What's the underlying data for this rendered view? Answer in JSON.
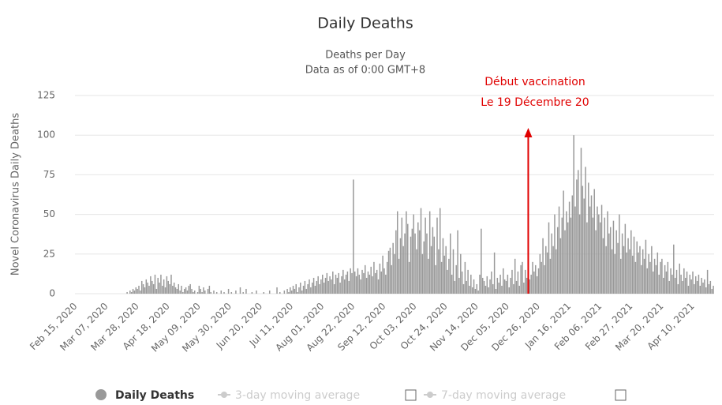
{
  "chart_data": {
    "type": "bar",
    "title": "Daily Deaths",
    "subtitle": [
      "Deaths per Day",
      "Data as of 0:00 GMT+8"
    ],
    "y_label": "Novel Coronavirus Daily Deaths",
    "annotation": [
      "Début vaccination",
      "Le 19 Décembre 20"
    ],
    "inactive_legend": [
      "3-day moving average",
      "7-day moving average"
    ],
    "ylim": [
      0,
      125
    ],
    "yticks": [
      0,
      25,
      50,
      75,
      100,
      125
    ],
    "grid": true,
    "categories": [
      "Feb 15, 2020",
      null,
      null,
      null,
      null,
      null,
      null,
      null,
      null,
      null,
      null,
      null,
      null,
      null,
      null,
      null,
      null,
      null,
      null,
      null,
      null,
      "Mar 07, 2020",
      null,
      null,
      null,
      null,
      null,
      null,
      null,
      null,
      null,
      null,
      null,
      null,
      null,
      null,
      null,
      null,
      null,
      null,
      null,
      null,
      "Mar 28, 2020",
      null,
      null,
      null,
      null,
      null,
      null,
      null,
      null,
      null,
      null,
      null,
      null,
      null,
      null,
      null,
      null,
      null,
      null,
      null,
      null,
      "Apr 18, 2020",
      null,
      null,
      null,
      null,
      null,
      null,
      null,
      null,
      null,
      null,
      null,
      null,
      null,
      null,
      null,
      null,
      null,
      null,
      null,
      null,
      "May 09, 2020",
      null,
      null,
      null,
      null,
      null,
      null,
      null,
      null,
      null,
      null,
      null,
      null,
      null,
      null,
      null,
      null,
      null,
      null,
      null,
      null,
      "May 30, 2020",
      null,
      null,
      null,
      null,
      null,
      null,
      null,
      null,
      null,
      null,
      null,
      null,
      null,
      null,
      null,
      null,
      null,
      null,
      null,
      null,
      "Jun 20, 2020",
      null,
      null,
      null,
      null,
      null,
      null,
      null,
      null,
      null,
      null,
      null,
      null,
      null,
      null,
      null,
      null,
      null,
      null,
      null,
      null,
      "Jul 11, 2020",
      null,
      null,
      null,
      null,
      null,
      null,
      null,
      null,
      null,
      null,
      null,
      null,
      null,
      null,
      null,
      null,
      null,
      null,
      null,
      null,
      "Aug 01, 2020",
      null,
      null,
      null,
      null,
      null,
      null,
      null,
      null,
      null,
      null,
      null,
      null,
      null,
      null,
      null,
      null,
      null,
      null,
      null,
      null,
      "Aug 22, 2020",
      null,
      null,
      null,
      null,
      null,
      null,
      null,
      null,
      null,
      null,
      null,
      null,
      null,
      null,
      null,
      null,
      null,
      null,
      null,
      null,
      "Sep 12, 2020",
      null,
      null,
      null,
      null,
      null,
      null,
      null,
      null,
      null,
      null,
      null,
      null,
      null,
      null,
      null,
      null,
      null,
      null,
      null,
      null,
      "Oct 03, 2020",
      null,
      null,
      null,
      null,
      null,
      null,
      null,
      null,
      null,
      null,
      null,
      null,
      null,
      null,
      null,
      null,
      null,
      null,
      null,
      null,
      "Oct 24, 2020",
      null,
      null,
      null,
      null,
      null,
      null,
      null,
      null,
      null,
      null,
      null,
      null,
      null,
      null,
      null,
      null,
      null,
      null,
      null,
      null,
      "Nov 14, 2020",
      null,
      null,
      null,
      null,
      null,
      null,
      null,
      null,
      null,
      null,
      null,
      null,
      null,
      null,
      null,
      null,
      null,
      null,
      null,
      null,
      "Dec 05, 2020",
      null,
      null,
      null,
      null,
      null,
      null,
      null,
      null,
      null,
      null,
      null,
      null,
      null,
      null,
      null,
      null,
      null,
      null,
      null,
      null,
      "Dec 26, 2020",
      null,
      null,
      null,
      null,
      null,
      null,
      null,
      null,
      null,
      null,
      null,
      null,
      null,
      null,
      null,
      null,
      null,
      null,
      null,
      null,
      "Jan 16, 2021",
      null,
      null,
      null,
      null,
      null,
      null,
      null,
      null,
      null,
      null,
      null,
      null,
      null,
      null,
      null,
      null,
      null,
      null,
      null,
      null,
      "Feb 06, 2021",
      null,
      null,
      null,
      null,
      null,
      null,
      null,
      null,
      null,
      null,
      null,
      null,
      null,
      null,
      null,
      null,
      null,
      null,
      null,
      null,
      "Feb 27, 2021",
      null,
      null,
      null,
      null,
      null,
      null,
      null,
      null,
      null,
      null,
      null,
      null,
      null,
      null,
      null,
      null,
      null,
      null,
      null,
      null,
      "Mar 20, 2021",
      null,
      null,
      null,
      null,
      null,
      null,
      null,
      null,
      null,
      null,
      null,
      null,
      null,
      null,
      null,
      null,
      null,
      null,
      null,
      null,
      "Apr 10, 2021",
      null,
      null,
      null,
      null,
      null,
      null,
      null,
      null,
      null,
      null,
      null,
      null,
      null,
      null
    ],
    "series": [
      {
        "name": "Daily Deaths",
        "color": "#999999",
        "values": [
          0,
          0,
          0,
          0,
          0,
          0,
          0,
          0,
          0,
          0,
          0,
          0,
          0,
          0,
          0,
          0,
          0,
          0,
          0,
          0,
          0,
          0,
          0,
          0,
          0,
          0,
          0,
          0,
          0,
          0,
          0,
          0,
          0,
          0,
          0,
          1,
          0,
          2,
          1,
          3,
          2,
          4,
          3,
          5,
          2,
          8,
          6,
          4,
          9,
          7,
          5,
          11,
          8,
          6,
          12,
          3,
          10,
          7,
          12,
          5,
          9,
          4,
          11,
          8,
          6,
          12,
          5,
          7,
          4,
          3,
          6,
          2,
          5,
          1,
          3,
          4,
          2,
          5,
          6,
          3,
          1,
          2,
          0,
          1,
          5,
          3,
          1,
          4,
          2,
          0,
          3,
          5,
          1,
          0,
          2,
          0,
          1,
          0,
          0,
          2,
          0,
          1,
          0,
          0,
          3,
          0,
          1,
          0,
          0,
          2,
          0,
          0,
          4,
          0,
          1,
          0,
          3,
          0,
          0,
          0,
          1,
          0,
          0,
          2,
          0,
          0,
          0,
          0,
          1,
          0,
          0,
          0,
          2,
          0,
          0,
          0,
          0,
          4,
          0,
          1,
          0,
          0,
          2,
          0,
          3,
          1,
          4,
          2,
          5,
          3,
          6,
          1,
          4,
          7,
          2,
          5,
          8,
          3,
          6,
          9,
          4,
          7,
          10,
          5,
          8,
          11,
          6,
          9,
          12,
          7,
          10,
          13,
          8,
          11,
          9,
          14,
          6,
          12,
          10,
          13,
          7,
          11,
          15,
          9,
          12,
          14,
          8,
          16,
          13,
          72,
          14,
          11,
          16,
          12,
          9,
          15,
          13,
          18,
          10,
          14,
          12,
          17,
          11,
          20,
          13,
          15,
          9,
          19,
          14,
          24,
          16,
          12,
          20,
          27,
          29,
          18,
          32,
          25,
          40,
          52,
          22,
          35,
          48,
          30,
          38,
          52,
          44,
          20,
          36,
          41,
          50,
          38,
          28,
          45,
          40,
          54,
          25,
          33,
          48,
          38,
          22,
          52,
          30,
          42,
          36,
          18,
          48,
          28,
          54,
          20,
          35,
          24,
          30,
          15,
          22,
          38,
          12,
          28,
          8,
          18,
          40,
          10,
          25,
          14,
          6,
          20,
          8,
          15,
          5,
          12,
          4,
          9,
          3,
          6,
          2,
          12,
          41,
          10,
          8,
          5,
          11,
          4,
          9,
          14,
          6,
          26,
          3,
          10,
          7,
          12,
          5,
          16,
          9,
          8,
          12,
          4,
          10,
          15,
          6,
          22,
          8,
          14,
          5,
          18,
          20,
          7,
          15,
          10,
          16,
          9,
          12,
          20,
          14,
          18,
          11,
          16,
          25,
          20,
          35,
          18,
          30,
          26,
          45,
          22,
          38,
          30,
          50,
          28,
          42,
          55,
          35,
          48,
          65,
          40,
          52,
          45,
          58,
          48,
          62,
          100,
          55,
          72,
          78,
          50,
          92,
          68,
          60,
          80,
          45,
          70,
          55,
          62,
          48,
          66,
          40,
          55,
          50,
          45,
          56,
          35,
          48,
          30,
          52,
          38,
          42,
          28,
          46,
          25,
          40,
          32,
          50,
          22,
          38,
          30,
          44,
          26,
          35,
          28,
          40,
          24,
          36,
          20,
          33,
          26,
          30,
          18,
          28,
          22,
          34,
          16,
          25,
          20,
          30,
          14,
          22,
          18,
          26,
          12,
          20,
          22,
          10,
          18,
          14,
          20,
          8,
          16,
          12,
          31,
          10,
          15,
          6,
          19,
          12,
          8,
          16,
          10,
          14,
          5,
          12,
          9,
          14,
          6,
          11,
          8,
          12,
          5,
          10,
          7,
          9,
          4,
          15,
          6,
          8,
          3,
          5
        ]
      }
    ]
  }
}
